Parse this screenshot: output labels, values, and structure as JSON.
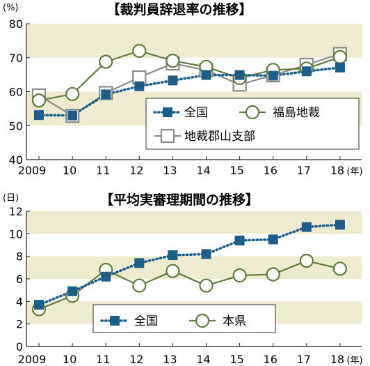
{
  "chart_data": [
    {
      "type": "line",
      "title": "【裁判員辞退率の推移】",
      "y_unit": "(%)",
      "x_unit": "(年)",
      "ylim": [
        40,
        80
      ],
      "yticks": [
        "40",
        "50",
        "60",
        "70",
        "80"
      ],
      "categories": [
        "2009",
        "10",
        "11",
        "12",
        "13",
        "14",
        "15",
        "16",
        "17",
        "18"
      ],
      "grid": "alternating horizontal bands",
      "series": [
        {
          "name": "全国",
          "marker": "filled-square",
          "style": "dotted",
          "color": "#1b5e8a",
          "values": [
            53.1,
            53.0,
            59.2,
            61.6,
            63.3,
            64.9,
            64.9,
            64.7,
            66.0,
            67.1
          ]
        },
        {
          "name": "福島地裁",
          "marker": "open-circle",
          "style": "solid",
          "color": "#5e7d3c",
          "values": [
            57.4,
            59.3,
            68.8,
            72.0,
            69.1,
            67.3,
            64.0,
            66.4,
            66.8,
            70.2
          ]
        },
        {
          "name": "地裁郡山支部",
          "marker": "open-square",
          "style": "solid",
          "color": "#8a8a8a",
          "values": [
            58.9,
            52.9,
            59.6,
            64.2,
            68.3,
            66.3,
            62.1,
            64.8,
            67.9,
            71.1
          ]
        }
      ]
    },
    {
      "type": "line",
      "title": "【平均実審理期間の推移】",
      "y_unit": "(日)",
      "x_unit": "(年)",
      "ylim": [
        0,
        12
      ],
      "yticks": [
        "0",
        "2",
        "4",
        "6",
        "8",
        "10",
        "12"
      ],
      "categories": [
        "2009",
        "10",
        "11",
        "12",
        "13",
        "14",
        "15",
        "16",
        "17",
        "18"
      ],
      "grid": "alternating horizontal bands",
      "series": [
        {
          "name": "全国",
          "marker": "filled-square",
          "style": "dotted",
          "color": "#1b5e8a",
          "values": [
            3.7,
            4.9,
            6.2,
            7.4,
            8.1,
            8.2,
            9.4,
            9.5,
            10.6,
            10.8
          ]
        },
        {
          "name": "本県",
          "marker": "open-circle",
          "style": "solid",
          "color": "#5e7d3c",
          "values": [
            3.3,
            4.5,
            6.8,
            5.4,
            6.7,
            5.4,
            6.3,
            6.4,
            7.6,
            6.9
          ]
        }
      ]
    }
  ]
}
